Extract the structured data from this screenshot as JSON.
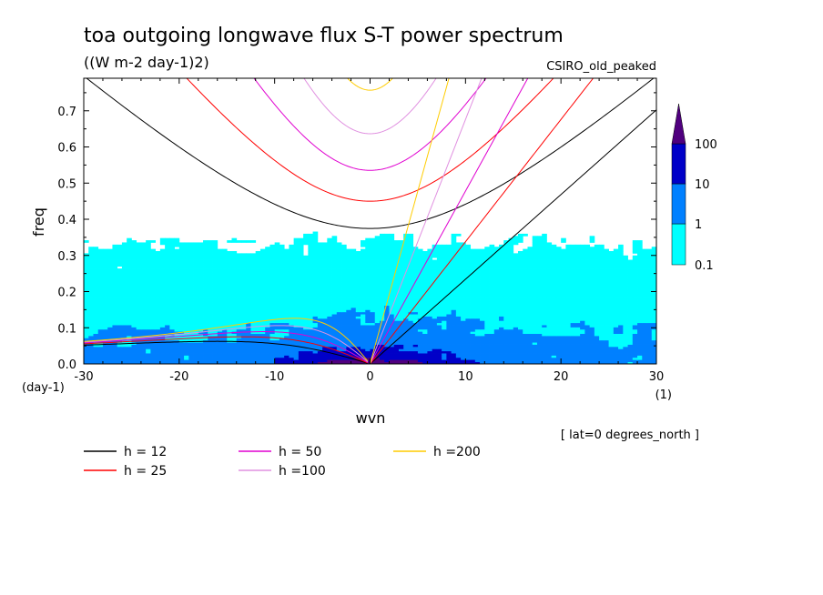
{
  "chart_data": {
    "type": "contour",
    "title": "toa outgoing longwave flux S-T power spectrum",
    "subtitle": "((W m-2 day-1)2)",
    "model_label": "CSIRO_old_peaked",
    "xlabel": "wvn",
    "xunit": "(1)",
    "ylabel": "freq",
    "yunit": "(day-1)",
    "footnote": "[ lat=0 degrees_north ]",
    "xlim": [
      -30,
      30
    ],
    "ylim": [
      0,
      0.79
    ],
    "xticks": [
      -30,
      -20,
      -10,
      0,
      10,
      20,
      30
    ],
    "yticks": [
      0.0,
      0.1,
      0.2,
      0.3,
      0.4,
      0.5,
      0.6,
      0.7
    ],
    "xtick_labels": [
      "-30",
      "-20",
      "-10",
      "0",
      "10",
      "20",
      "30"
    ],
    "ytick_labels": [
      "0.0",
      "0.1",
      "0.2",
      "0.3",
      "0.4",
      "0.5",
      "0.6",
      "0.7"
    ],
    "colorbar": {
      "levels": [
        0.1,
        1,
        10,
        100
      ],
      "labels": [
        "0.1",
        "1",
        "10",
        "100"
      ],
      "colors": [
        "#00ffff",
        "#0080ff",
        "#0000c8",
        "#50007f"
      ]
    },
    "dispersion_curves": [
      {
        "name": "h = 12",
        "h": 12,
        "color": "#000000"
      },
      {
        "name": "h = 25",
        "h": 25,
        "color": "#ff0000"
      },
      {
        "name": "h = 50",
        "h": 50,
        "color": "#e000d0"
      },
      {
        "name": "h =100",
        "h": 100,
        "color": "#e090e0"
      },
      {
        "name": "h =200",
        "h": 200,
        "color": "#ffcc00"
      }
    ],
    "spectrum_summary": {
      "weak_region_0p1_to_1": "broad patches over wvn -30..30, freq 0..~0.35",
      "moderate_region_1_to_10": "wvn -10..15, freq 0..0.10",
      "strong_region_10_to_100": "wvn -5..3, freq 0..0.04"
    }
  }
}
